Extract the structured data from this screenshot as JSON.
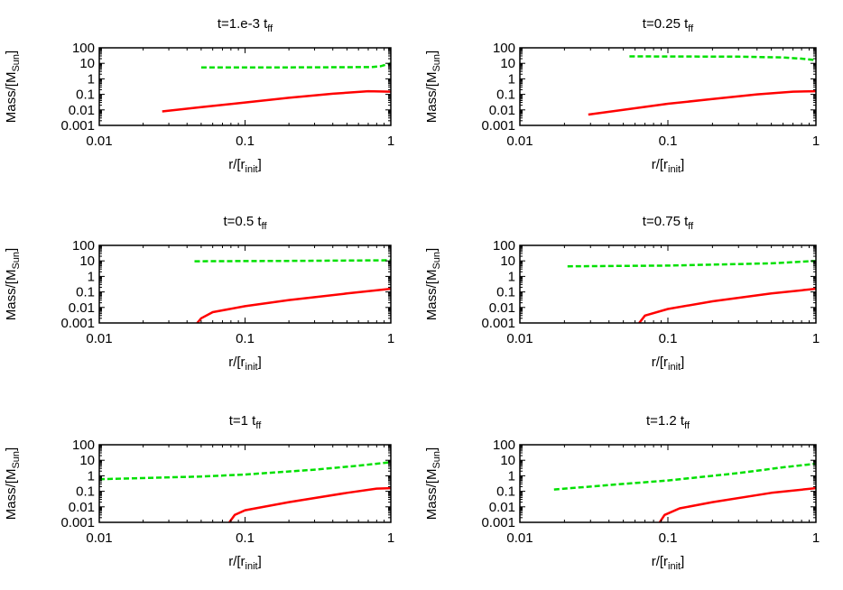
{
  "chart_data": [
    {
      "type": "line",
      "title_main": "t=1.e-3 t",
      "title_sub": "ff",
      "xlabel_main": "r/[r",
      "xlabel_sub": "init",
      "xlabel_end": "]",
      "ylabel_main": "Mass/[M",
      "ylabel_sub": "Sun",
      "ylabel_end": "]",
      "xscale": "log",
      "yscale": "log",
      "xlim": [
        0.01,
        1
      ],
      "ylim": [
        0.001,
        100
      ],
      "xticks": [
        "0.01",
        "0.1",
        "1"
      ],
      "yticks": [
        "0.001",
        "0.01",
        "0.1",
        "1",
        "10",
        "100"
      ],
      "series": [
        {
          "color": "#ff0000",
          "style": "solid",
          "x": [
            0.027,
            0.05,
            0.1,
            0.2,
            0.4,
            0.7,
            1.0
          ],
          "y": [
            0.008,
            0.015,
            0.03,
            0.06,
            0.11,
            0.16,
            0.15
          ]
        },
        {
          "color": "#00e000",
          "style": "dashed",
          "x": [
            0.05,
            0.2,
            0.5,
            0.75,
            0.85,
            1.0
          ],
          "y": [
            5.5,
            5.5,
            5.6,
            5.8,
            6.5,
            10
          ]
        }
      ]
    },
    {
      "type": "line",
      "title_main": "t=0.25 t",
      "title_sub": "ff",
      "xlabel_main": "r/[r",
      "xlabel_sub": "init",
      "xlabel_end": "]",
      "ylabel_main": "Mass/[M",
      "ylabel_sub": "Sun",
      "ylabel_end": "]",
      "xscale": "log",
      "yscale": "log",
      "xlim": [
        0.01,
        1
      ],
      "ylim": [
        0.001,
        100
      ],
      "xticks": [
        "0.01",
        "0.1",
        "1"
      ],
      "yticks": [
        "0.001",
        "0.01",
        "0.1",
        "1",
        "10",
        "100"
      ],
      "series": [
        {
          "color": "#ff0000",
          "style": "solid",
          "x": [
            0.029,
            0.05,
            0.1,
            0.2,
            0.4,
            0.7,
            1.0
          ],
          "y": [
            0.005,
            0.01,
            0.025,
            0.05,
            0.1,
            0.15,
            0.16
          ]
        },
        {
          "color": "#00e000",
          "style": "dashed",
          "x": [
            0.055,
            0.3,
            0.6,
            0.8,
            1.0
          ],
          "y": [
            28,
            27,
            24,
            20,
            16
          ]
        }
      ]
    },
    {
      "type": "line",
      "title_main": "t=0.5 t",
      "title_sub": "ff",
      "xlabel_main": "r/[r",
      "xlabel_sub": "init",
      "xlabel_end": "]",
      "ylabel_main": "Mass/[M",
      "ylabel_sub": "Sun",
      "ylabel_end": "]",
      "xscale": "log",
      "yscale": "log",
      "xlim": [
        0.01,
        1
      ],
      "ylim": [
        0.001,
        100
      ],
      "xticks": [
        "0.01",
        "0.1",
        "1"
      ],
      "yticks": [
        "0.001",
        "0.01",
        "0.1",
        "1",
        "10",
        "100"
      ],
      "series": [
        {
          "color": "#ff0000",
          "style": "solid",
          "x": [
            0.047,
            0.05,
            0.06,
            0.1,
            0.2,
            0.5,
            1.0
          ],
          "y": [
            0.001,
            0.002,
            0.005,
            0.012,
            0.03,
            0.08,
            0.16
          ]
        },
        {
          "color": "#00e000",
          "style": "dashed",
          "x": [
            0.045,
            0.2,
            1.0
          ],
          "y": [
            9.5,
            10,
            11
          ]
        }
      ]
    },
    {
      "type": "line",
      "title_main": "t=0.75 t",
      "title_sub": "ff",
      "xlabel_main": "r/[r",
      "xlabel_sub": "init",
      "xlabel_end": "]",
      "ylabel_main": "Mass/[M",
      "ylabel_sub": "Sun",
      "ylabel_end": "]",
      "xscale": "log",
      "yscale": "log",
      "xlim": [
        0.01,
        1
      ],
      "ylim": [
        0.001,
        100
      ],
      "xticks": [
        "0.01",
        "0.1",
        "1"
      ],
      "yticks": [
        "0.001",
        "0.01",
        "0.1",
        "1",
        "10",
        "100"
      ],
      "series": [
        {
          "color": "#ff0000",
          "style": "solid",
          "x": [
            0.064,
            0.07,
            0.1,
            0.2,
            0.5,
            1.0
          ],
          "y": [
            0.001,
            0.003,
            0.008,
            0.025,
            0.08,
            0.16
          ]
        },
        {
          "color": "#00e000",
          "style": "dashed",
          "x": [
            0.021,
            0.1,
            0.5,
            1.0
          ],
          "y": [
            4.5,
            5,
            7,
            10
          ]
        }
      ]
    },
    {
      "type": "line",
      "title_main": "t=1 t",
      "title_sub": "ff",
      "xlabel_main": "r/[r",
      "xlabel_sub": "init",
      "xlabel_end": "]",
      "ylabel_main": "Mass/[M",
      "ylabel_sub": "Sun",
      "ylabel_end": "]",
      "xscale": "log",
      "yscale": "log",
      "xlim": [
        0.01,
        1
      ],
      "ylim": [
        0.001,
        100
      ],
      "xticks": [
        "0.01",
        "0.1",
        "1"
      ],
      "yticks": [
        "0.001",
        "0.01",
        "0.1",
        "1",
        "10",
        "100"
      ],
      "series": [
        {
          "color": "#ff0000",
          "style": "solid",
          "x": [
            0.078,
            0.085,
            0.1,
            0.2,
            0.5,
            0.8,
            1.0
          ],
          "y": [
            0.001,
            0.003,
            0.006,
            0.02,
            0.08,
            0.15,
            0.16
          ]
        },
        {
          "color": "#00e000",
          "style": "dashed",
          "x": [
            0.01,
            0.05,
            0.1,
            0.3,
            0.6,
            1.0
          ],
          "y": [
            0.6,
            0.9,
            1.2,
            2.5,
            4.5,
            7.5
          ]
        }
      ]
    },
    {
      "type": "line",
      "title_main": "t=1.2 t",
      "title_sub": "ff",
      "xlabel_main": "r/[r",
      "xlabel_sub": "init",
      "xlabel_end": "]",
      "ylabel_main": "Mass/[M",
      "ylabel_sub": "Sun",
      "ylabel_end": "]",
      "xscale": "log",
      "yscale": "log",
      "xlim": [
        0.01,
        1
      ],
      "ylim": [
        0.001,
        100
      ],
      "xticks": [
        "0.01",
        "0.1",
        "1"
      ],
      "yticks": [
        "0.001",
        "0.01",
        "0.1",
        "1",
        "10",
        "100"
      ],
      "series": [
        {
          "color": "#ff0000",
          "style": "solid",
          "x": [
            0.088,
            0.095,
            0.12,
            0.2,
            0.5,
            1.0
          ],
          "y": [
            0.001,
            0.003,
            0.008,
            0.02,
            0.08,
            0.16
          ]
        },
        {
          "color": "#00e000",
          "style": "dashed",
          "x": [
            0.017,
            0.05,
            0.1,
            0.3,
            0.6,
            1.0
          ],
          "y": [
            0.13,
            0.3,
            0.5,
            1.5,
            3.5,
            6
          ]
        }
      ]
    }
  ]
}
